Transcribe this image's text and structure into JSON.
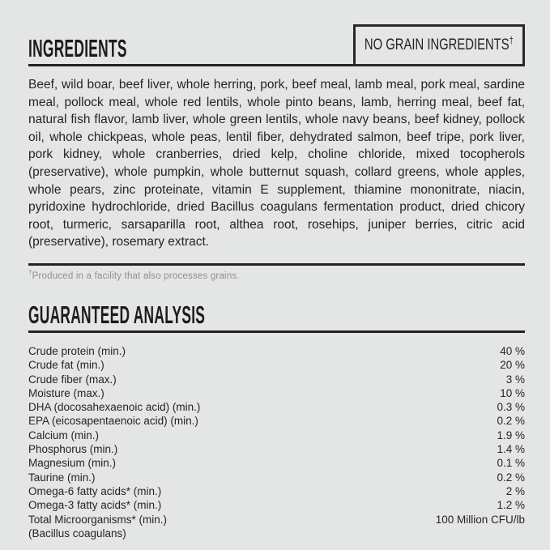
{
  "colors": {
    "background": "#e4e5e5",
    "ink": "#242122",
    "muted_footnote": "#8f908e",
    "badge_border": "#2b2726"
  },
  "ingredients": {
    "title": "INGREDIENTS",
    "badge_label": "NO GRAIN INGREDIENTS",
    "badge_sup": "†",
    "body": "Beef, wild boar, beef liver, whole herring, pork, beef meal, lamb meal, pork meal, sardine meal, pollock meal, whole red lentils, whole pinto beans, lamb, herring meal, beef fat, natural fish flavor, lamb liver, whole green lentils, whole navy beans, beef kidney, pollock oil, whole chickpeas, whole peas, lentil fiber, dehydrated salmon, beef tripe, pork liver, pork kidney, whole cranberries, dried kelp, choline chloride, mixed tocopherols (preservative), whole pumpkin, whole butternut squash, collard greens, whole apples, whole pears, zinc proteinate, vitamin E supplement, thiamine mononitrate, niacin, pyridoxine hydrochloride, dried Bacillus coagulans fermentation product, dried chicory root, turmeric, sarsaparilla root, althea root, rosehips, juniper berries, citric acid (preservative), rosemary extract.",
    "footnote_sup": "†",
    "footnote": "Produced in a facility that also processes grains."
  },
  "analysis": {
    "title": "GUARANTEED ANALYSIS",
    "rows": [
      {
        "label": "Crude protein (min.)",
        "value": "40 %"
      },
      {
        "label": "Crude fat (min.)",
        "value": "20 %"
      },
      {
        "label": "Crude fiber (max.)",
        "value": "3 %"
      },
      {
        "label": "Moisture (max.)",
        "value": "10 %"
      },
      {
        "label": "DHA (docosahexaenoic acid) (min.)",
        "value": "0.3 %"
      },
      {
        "label": "EPA (eicosapentaenoic acid) (min.)",
        "value": "0.2 %"
      },
      {
        "label": "Calcium (min.)",
        "value": "1.9 %"
      },
      {
        "label": "Phosphorus (min.)",
        "value": "1.4 %"
      },
      {
        "label": "Magnesium (min.)",
        "value": "0.1 %"
      },
      {
        "label": "Taurine (min.)",
        "value": "0.2 %"
      },
      {
        "label": "Omega-6 fatty acids* (min.)",
        "value": "2 %"
      },
      {
        "label": "Omega-3 fatty acids* (min.)",
        "value": "1.2 %"
      },
      {
        "label": "Total Microorganisms* (min.)",
        "value": "100 Million CFU/lb"
      },
      {
        "label": "(Bacillus coagulans)",
        "value": ""
      }
    ]
  }
}
